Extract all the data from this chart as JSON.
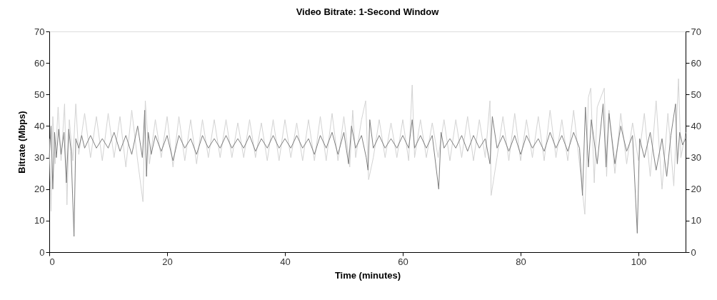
{
  "chart_data": {
    "type": "line",
    "title": "Video Bitrate: 1-Second Window",
    "xlabel": "Time (minutes)",
    "ylabel": "Bitrate (Mbps)",
    "xlim": [
      0,
      108
    ],
    "xticks": [
      0,
      20,
      40,
      60,
      80,
      100
    ],
    "ylim": [
      0,
      70
    ],
    "yticks": [
      0,
      10,
      20,
      30,
      40,
      50,
      60,
      70
    ],
    "y2lim": [
      0,
      70
    ],
    "y2ticks": [
      0,
      10,
      20,
      30,
      40,
      50,
      60,
      70
    ],
    "grid": false,
    "marker": "none",
    "line_style": "solid",
    "series": [
      {
        "color": "#d3d3d3",
        "x": [
          0,
          0.3,
          0.6,
          1,
          1.5,
          2,
          2.6,
          3,
          3.4,
          4,
          4.5,
          5,
          6,
          7,
          8,
          9,
          10,
          11,
          12,
          13,
          14,
          15,
          15.9,
          16.3,
          17,
          18,
          19,
          20,
          21,
          22,
          23,
          24,
          25,
          26,
          27,
          28,
          29,
          30,
          31,
          32,
          33,
          34,
          35,
          36,
          37,
          38,
          39,
          40,
          41,
          42,
          43,
          44,
          45,
          46,
          47,
          48,
          49,
          50,
          51,
          51.5,
          52,
          53,
          53.7,
          54.2,
          55,
          56,
          57,
          58,
          59,
          60,
          61,
          61.6,
          62,
          63,
          64,
          65,
          66,
          67,
          68,
          69,
          70,
          71,
          72,
          73,
          74,
          74.8,
          75,
          76,
          77,
          78,
          79,
          80,
          81,
          82,
          83,
          84,
          85,
          86,
          87,
          88,
          89,
          90,
          90.9,
          91.5,
          91.9,
          92.5,
          93,
          94.2,
          94.6,
          95,
          96,
          97,
          98,
          99,
          100,
          101,
          102,
          103,
          104,
          105,
          106,
          106.8,
          107.2,
          108
        ],
        "values": [
          36,
          13,
          43,
          28,
          46,
          29,
          47,
          15,
          42,
          29,
          47,
          31,
          44,
          30,
          43,
          29,
          44,
          30,
          43,
          27,
          45,
          29,
          16,
          48,
          28,
          42,
          30,
          43,
          27,
          43,
          29,
          42,
          28,
          42,
          30,
          42,
          30,
          42,
          30,
          41,
          30,
          42,
          30,
          41,
          29,
          42,
          29,
          42,
          30,
          41,
          29,
          42,
          29,
          43,
          29,
          44,
          29,
          43,
          27,
          45,
          30,
          42,
          48,
          23,
          30,
          42,
          30,
          41,
          30,
          42,
          29,
          53,
          30,
          42,
          30,
          41,
          30,
          42,
          29,
          42,
          30,
          43,
          29,
          42,
          30,
          48,
          18,
          30,
          43,
          29,
          44,
          29,
          42,
          30,
          43,
          29,
          45,
          30,
          42,
          29,
          45,
          28,
          12,
          49,
          52,
          22,
          46,
          52,
          24,
          45,
          25,
          44,
          28,
          41,
          29,
          44,
          24,
          48,
          20,
          44,
          21,
          55,
          30,
          38
        ]
      },
      {
        "color": "#7f7f7f",
        "x": [
          0,
          0.3,
          0.6,
          0.9,
          1.2,
          1.6,
          2,
          2.5,
          2.9,
          3.3,
          3.7,
          4.2,
          4.5,
          5,
          5.5,
          6,
          7,
          8,
          9,
          10,
          11,
          12,
          13,
          14,
          15,
          15.8,
          16.2,
          16.5,
          16.8,
          17.3,
          18,
          19,
          20,
          21,
          22,
          23,
          24,
          25,
          26,
          27,
          28,
          29,
          30,
          31,
          32,
          33,
          34,
          35,
          36,
          37,
          38,
          39,
          40,
          41,
          42,
          43,
          44,
          45,
          46,
          47,
          48,
          49,
          50,
          50.8,
          51.3,
          52,
          53,
          53.8,
          54.1,
          54.4,
          55,
          56,
          57,
          58,
          59,
          60,
          61,
          61.6,
          62,
          63,
          64,
          65,
          66.1,
          66.5,
          67,
          68,
          69,
          70,
          71,
          72,
          73,
          74,
          74.8,
          75.2,
          76,
          77,
          78,
          79,
          80,
          81,
          82,
          83,
          84,
          85,
          86,
          87,
          88,
          89,
          90,
          90.5,
          91,
          91.5,
          92,
          93,
          94,
          94.5,
          95,
          96,
          97,
          98,
          99,
          99.8,
          100.2,
          101,
          102,
          103,
          104,
          104.8,
          105.5,
          106.3,
          106.6,
          107,
          107.5,
          108
        ],
        "values": [
          30,
          40,
          20,
          38,
          30,
          39,
          31,
          38,
          22,
          39,
          32,
          5,
          36,
          33,
          37,
          33,
          37,
          33,
          36,
          33,
          38,
          32,
          37,
          31,
          40,
          30,
          45,
          24,
          38,
          31,
          37,
          32,
          37,
          29,
          37,
          33,
          36,
          31,
          37,
          33,
          36,
          33,
          37,
          33,
          36,
          33,
          37,
          32,
          36,
          33,
          37,
          33,
          36,
          33,
          37,
          33,
          36,
          31,
          37,
          33,
          38,
          31,
          38,
          28,
          40,
          33,
          37,
          30,
          26,
          42,
          33,
          37,
          33,
          36,
          33,
          37,
          33,
          42,
          33,
          37,
          33,
          37,
          20,
          38,
          33,
          36,
          33,
          37,
          32,
          37,
          33,
          36,
          28,
          43,
          33,
          37,
          32,
          37,
          31,
          37,
          33,
          36,
          32,
          38,
          33,
          37,
          32,
          38,
          33,
          18,
          46,
          27,
          42,
          28,
          47,
          27,
          44,
          28,
          40,
          32,
          37,
          6,
          36,
          30,
          38,
          26,
          36,
          24,
          37,
          47,
          28,
          38,
          34,
          36
        ]
      }
    ]
  }
}
